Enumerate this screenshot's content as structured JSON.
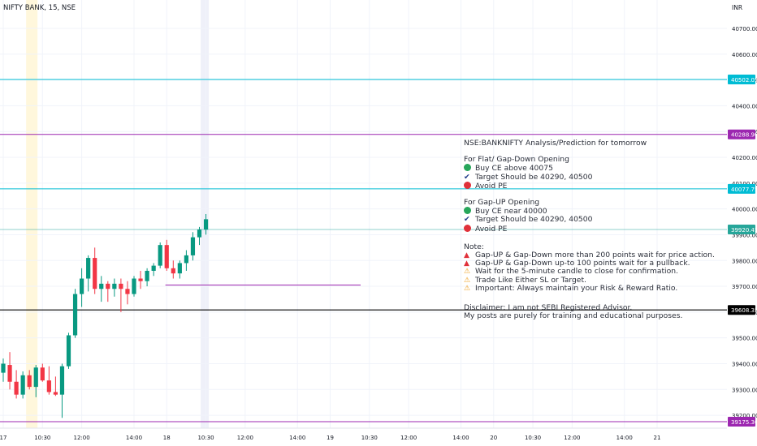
{
  "symbol_label": "NIFTY BANK, 15, NSE",
  "currency_label": "INR",
  "chart_data": {
    "type": "candlestick",
    "symbol": "NSE:BANKNIFTY",
    "interval": "15",
    "ylim": [
      39150,
      40810
    ],
    "y_ticks": [
      39200,
      39300,
      39400,
      39500,
      39600,
      39700,
      39800,
      39900,
      40000,
      40100,
      40200,
      40300,
      40400,
      40500,
      40600,
      40700
    ],
    "y_tick_labels": [
      "39200.00",
      "39300.00",
      "39400.00",
      "39500.00",
      "39600.00",
      "39700.00",
      "39800.00",
      "39900.00",
      "40000.00",
      "40100.00",
      "40200.00",
      "40300.00",
      "40400.00",
      "40500.00",
      "40600.00",
      "40700.00"
    ],
    "x_ticks": [
      {
        "label": "17",
        "bar": 0
      },
      {
        "label": "10:30",
        "bar": 6
      },
      {
        "label": "12:00",
        "bar": 12
      },
      {
        "label": "14:00",
        "bar": 20
      },
      {
        "label": "18",
        "bar": 25
      },
      {
        "label": "10:30",
        "bar": 31
      },
      {
        "label": "12:00",
        "bar": 37
      },
      {
        "label": "14:00",
        "bar": 45
      },
      {
        "label": "19",
        "bar": 50
      },
      {
        "label": "10:30",
        "bar": 56
      },
      {
        "label": "12:00",
        "bar": 62
      },
      {
        "label": "14:00",
        "bar": 70
      },
      {
        "label": "20",
        "bar": 75
      },
      {
        "label": "10:30",
        "bar": 81
      },
      {
        "label": "12:00",
        "bar": 87
      },
      {
        "label": "14:00",
        "bar": 95
      },
      {
        "label": "21",
        "bar": 100
      }
    ],
    "candles": [
      {
        "o": 39365,
        "h": 39420,
        "l": 39330,
        "c": 39400
      },
      {
        "o": 39395,
        "h": 39445,
        "l": 39300,
        "c": 39330
      },
      {
        "o": 39330,
        "h": 39375,
        "l": 39265,
        "c": 39280
      },
      {
        "o": 39280,
        "h": 39370,
        "l": 39265,
        "c": 39355
      },
      {
        "o": 39355,
        "h": 39375,
        "l": 39300,
        "c": 39310
      },
      {
        "o": 39310,
        "h": 39395,
        "l": 39270,
        "c": 39385
      },
      {
        "o": 39385,
        "h": 39400,
        "l": 39330,
        "c": 39335
      },
      {
        "o": 39335,
        "h": 39390,
        "l": 39280,
        "c": 39290
      },
      {
        "o": 39290,
        "h": 39350,
        "l": 39275,
        "c": 39280
      },
      {
        "o": 39280,
        "h": 39400,
        "l": 39190,
        "c": 39390
      },
      {
        "o": 39390,
        "h": 39520,
        "l": 39380,
        "c": 39510
      },
      {
        "o": 39510,
        "h": 39690,
        "l": 39500,
        "c": 39670
      },
      {
        "o": 39670,
        "h": 39770,
        "l": 39620,
        "c": 39730
      },
      {
        "o": 39730,
        "h": 39820,
        "l": 39680,
        "c": 39810
      },
      {
        "o": 39810,
        "h": 39850,
        "l": 39670,
        "c": 39690
      },
      {
        "o": 39690,
        "h": 39740,
        "l": 39640,
        "c": 39710
      },
      {
        "o": 39710,
        "h": 39720,
        "l": 39640,
        "c": 39690
      },
      {
        "o": 39690,
        "h": 39730,
        "l": 39660,
        "c": 39710
      },
      {
        "o": 39710,
        "h": 39730,
        "l": 39600,
        "c": 39690
      },
      {
        "o": 39690,
        "h": 39720,
        "l": 39630,
        "c": 39670
      },
      {
        "o": 39670,
        "h": 39740,
        "l": 39660,
        "c": 39730
      },
      {
        "o": 39730,
        "h": 39760,
        "l": 39690,
        "c": 39720
      },
      {
        "o": 39720,
        "h": 39770,
        "l": 39700,
        "c": 39760
      },
      {
        "o": 39760,
        "h": 39790,
        "l": 39740,
        "c": 39780
      },
      {
        "o": 39780,
        "h": 39870,
        "l": 39770,
        "c": 39860
      },
      {
        "o": 39860,
        "h": 39880,
        "l": 39760,
        "c": 39770
      },
      {
        "o": 39770,
        "h": 39800,
        "l": 39730,
        "c": 39750
      },
      {
        "o": 39750,
        "h": 39800,
        "l": 39730,
        "c": 39790
      },
      {
        "o": 39790,
        "h": 39840,
        "l": 39760,
        "c": 39820
      },
      {
        "o": 39820,
        "h": 39910,
        "l": 39800,
        "c": 39890
      },
      {
        "o": 39890,
        "h": 39930,
        "l": 39860,
        "c": 39920
      },
      {
        "o": 39920,
        "h": 39980,
        "l": 39900,
        "c": 39960
      }
    ],
    "horizontal_lines": [
      {
        "value": 40502.05,
        "label": "40502.05",
        "color": "#00bcd4"
      },
      {
        "value": 40288.9,
        "label": "40288.90",
        "color": "#9c27b0"
      },
      {
        "value": 40077.75,
        "label": "40077.75",
        "color": "#00bcd4"
      },
      {
        "value": 39920.45,
        "label": "39920.45",
        "color": "#26a69a"
      },
      {
        "value": 39608.35,
        "label": "39608.35",
        "color": "#000000"
      },
      {
        "value": 39175.3,
        "label": "39175.30",
        "color": "#9c27b0"
      }
    ],
    "ray_level": 39705,
    "colors": {
      "up": "#089981",
      "down": "#f23645",
      "session_a": "#fff3cd",
      "session_b": "#e8eaf6"
    }
  },
  "note": {
    "title": "NSE:BANKNIFTY Analysis/Prediction for tomorrow",
    "flat": {
      "heading": "For Flat/ Gap-Down Opening",
      "buy": "Buy CE above 40075",
      "target": "Target Should be 40290, 40500",
      "avoid": "Avoid PE"
    },
    "gapup": {
      "heading": "For Gap-UP Opening",
      "buy": "Buy CE near 40000",
      "target": "Target Should be 40290, 40500",
      "avoid": "Avoid PE"
    },
    "notes": {
      "heading": "Note:",
      "items": [
        "Gap-UP & Gap-Down more than 200 points wait for price action.",
        "Gap-UP & Gap-Down up-to 100 points wait for a pullback.",
        "Wait for the 5-minute candle to close for confirmation.",
        "Trade Like Either SL or Target.",
        "Important: Always maintain your Risk & Reward Ratio."
      ]
    },
    "disclaimer": [
      "Disclaimer: I am not SEBI Registered Advisor.",
      "My posts are purely for training and educational purposes."
    ]
  }
}
